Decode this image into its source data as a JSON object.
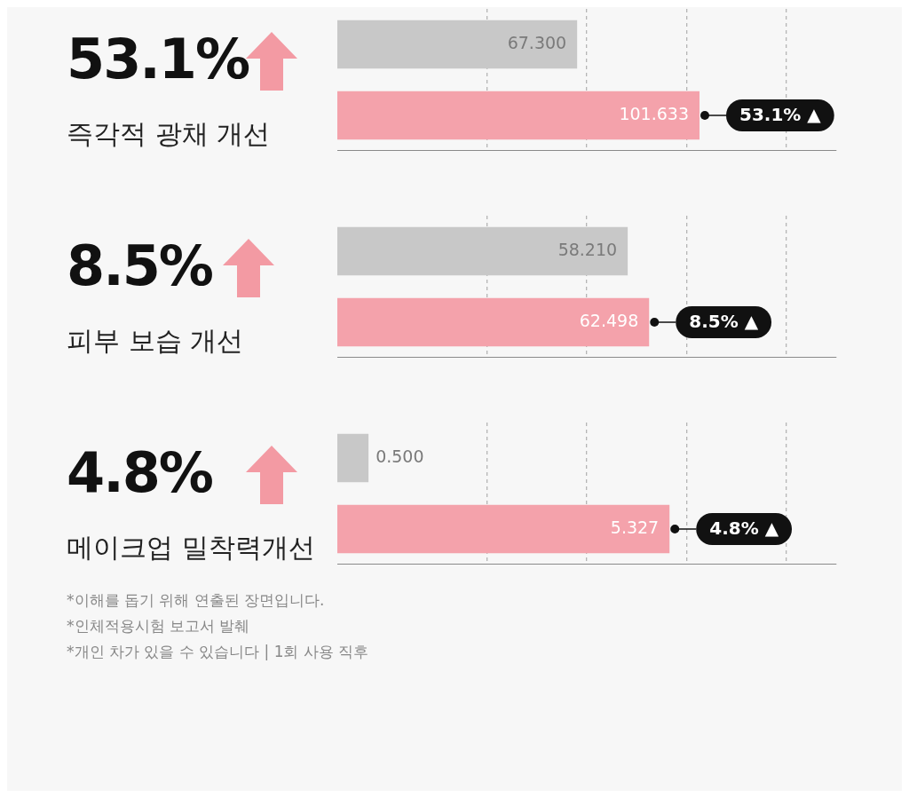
{
  "chart_data": [
    {
      "type": "bar",
      "orientation": "horizontal",
      "title": "53.1%",
      "subtitle": "즉각적 광채 개선",
      "categories": [
        null,
        null
      ],
      "values": [
        67.3,
        101.633
      ],
      "value_labels": [
        "67.300",
        "101.633"
      ],
      "colors": [
        "#c8c8c8",
        "#f4a2ab"
      ],
      "grid": "x",
      "xlim": [
        0,
        140
      ],
      "xticks": [
        {
          "value": 42,
          "label": null
        },
        {
          "value": 70,
          "label": null
        },
        {
          "value": 98,
          "label": null
        },
        {
          "value": 126,
          "label": null
        }
      ],
      "annotations": [
        {
          "text": "53.1% ▲",
          "x": 101.633
        }
      ]
    },
    {
      "type": "bar",
      "orientation": "horizontal",
      "title": "8.5%",
      "subtitle": "피부 보습 개선",
      "categories": [
        null,
        null
      ],
      "values": [
        58.21,
        62.498
      ],
      "value_labels": [
        "58.210",
        "62.498"
      ],
      "colors": [
        "#c8c8c8",
        "#f4a2ab"
      ],
      "grid": "x",
      "xlim": [
        0,
        100
      ],
      "xticks": [
        {
          "value": 30,
          "label": null
        },
        {
          "value": 50,
          "label": null
        },
        {
          "value": 70,
          "label": null
        },
        {
          "value": 90,
          "label": null
        }
      ],
      "annotations": [
        {
          "text": "8.5% ▲",
          "x": 62.498
        }
      ]
    },
    {
      "type": "bar",
      "orientation": "horizontal",
      "title": "4.8%",
      "subtitle": "메이크업 밀착력개선",
      "categories": [
        null,
        null
      ],
      "values": [
        0.5,
        5.327
      ],
      "value_labels": [
        "0.500",
        "5.327"
      ],
      "colors": [
        "#c8c8c8",
        "#f4a2ab"
      ],
      "grid": "x",
      "xlim": [
        0,
        8
      ],
      "xticks": [
        {
          "value": 2.4,
          "label": null
        },
        {
          "value": 4,
          "label": null
        },
        {
          "value": 5.6,
          "label": null
        },
        {
          "value": 7.2,
          "label": null
        }
      ],
      "annotations": [
        {
          "text": "4.8% ▲",
          "x": 5.327
        },
        "*이해를 돕기 위해 연출된 장면입니다.",
        "*인체적용시험 보고서 발췌",
        "*개인 차가 있을 수 있습니다 | 1회 사용 직후"
      ]
    }
  ]
}
